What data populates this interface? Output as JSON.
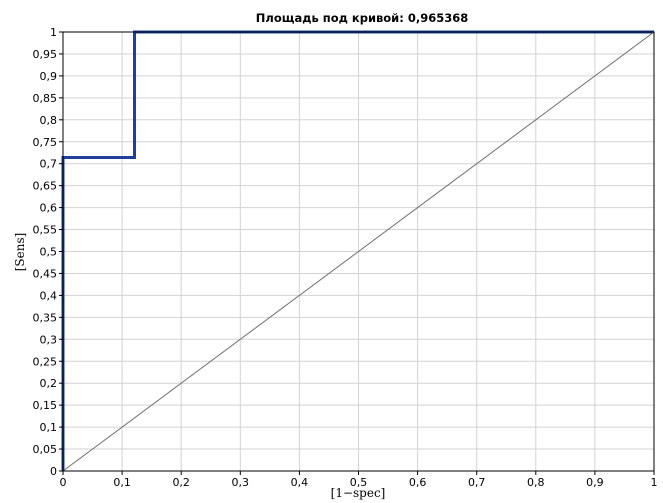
{
  "chart_data": {
    "type": "line",
    "title": "Площадь под кривой: 0,965368",
    "xlabel": "[1−spec]",
    "ylabel": "[Sens]",
    "xlim": [
      0,
      1
    ],
    "ylim": [
      0,
      1
    ],
    "grid": true,
    "legend": "none",
    "x_ticks": [
      "0",
      "0,1",
      "0,2",
      "0,3",
      "0,4",
      "0,5",
      "0,6",
      "0,7",
      "0,8",
      "0,9",
      "1"
    ],
    "y_ticks": [
      "0",
      "0,05",
      "0,1",
      "0,15",
      "0,2",
      "0,25",
      "0,3",
      "0,35",
      "0,4",
      "0,45",
      "0,5",
      "0,55",
      "0,6",
      "0,65",
      "0,7",
      "0,75",
      "0,8",
      "0,85",
      "0,9",
      "0,95",
      "1"
    ],
    "series": [
      {
        "kind": "roc",
        "color": "#1f3f9c",
        "points": [
          [
            0,
            0
          ],
          [
            0,
            0.714
          ],
          [
            0.121,
            0.714
          ],
          [
            0.121,
            1
          ],
          [
            1,
            1
          ]
        ]
      },
      {
        "kind": "diagonal",
        "color": "#707070",
        "points": [
          [
            0,
            0
          ],
          [
            1,
            1
          ]
        ]
      }
    ]
  },
  "colors": {
    "grid": "#d3d3d3",
    "axis": "#000000",
    "roc": "#1f3f9c",
    "diagonal": "#707070"
  }
}
